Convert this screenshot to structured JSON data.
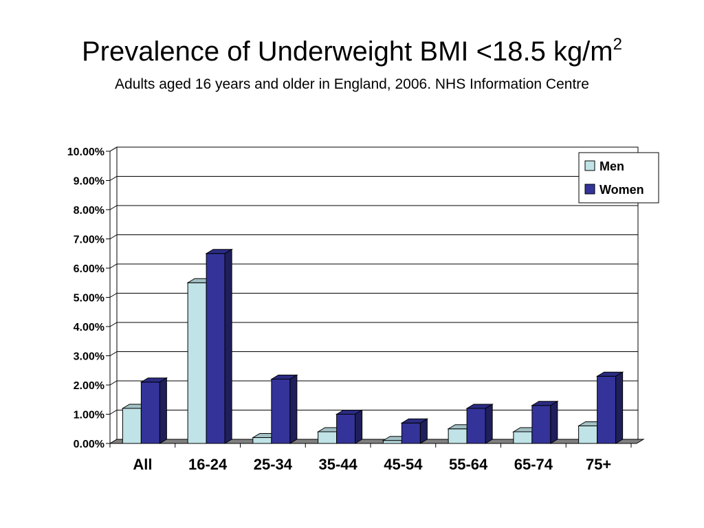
{
  "header": {
    "title": "Prevalence of Underweight BMI <18.5 kg/m",
    "title_superscript": "2",
    "subtitle": "Adults aged 16 years and older in England, 2006. NHS Information Centre"
  },
  "chart_data": {
    "type": "bar",
    "categories": [
      "All",
      "16-24",
      "25-34",
      "35-44",
      "45-54",
      "55-64",
      "65-74",
      "75+"
    ],
    "series": [
      {
        "name": "Men",
        "color": "#bfe3e6",
        "values": [
          1.2,
          5.5,
          0.2,
          0.4,
          0.1,
          0.5,
          0.4,
          0.6
        ]
      },
      {
        "name": "Women",
        "color": "#33339a",
        "values": [
          2.1,
          6.5,
          2.2,
          1.0,
          0.7,
          1.2,
          1.3,
          2.3
        ]
      }
    ],
    "yticks": [
      "0.00%",
      "1.00%",
      "2.00%",
      "3.00%",
      "4.00%",
      "5.00%",
      "6.00%",
      "7.00%",
      "8.00%",
      "9.00%",
      "10.00%"
    ],
    "ylim": [
      0,
      10
    ],
    "grid": true,
    "legend_position": "top-right",
    "style": "3d-bar"
  }
}
